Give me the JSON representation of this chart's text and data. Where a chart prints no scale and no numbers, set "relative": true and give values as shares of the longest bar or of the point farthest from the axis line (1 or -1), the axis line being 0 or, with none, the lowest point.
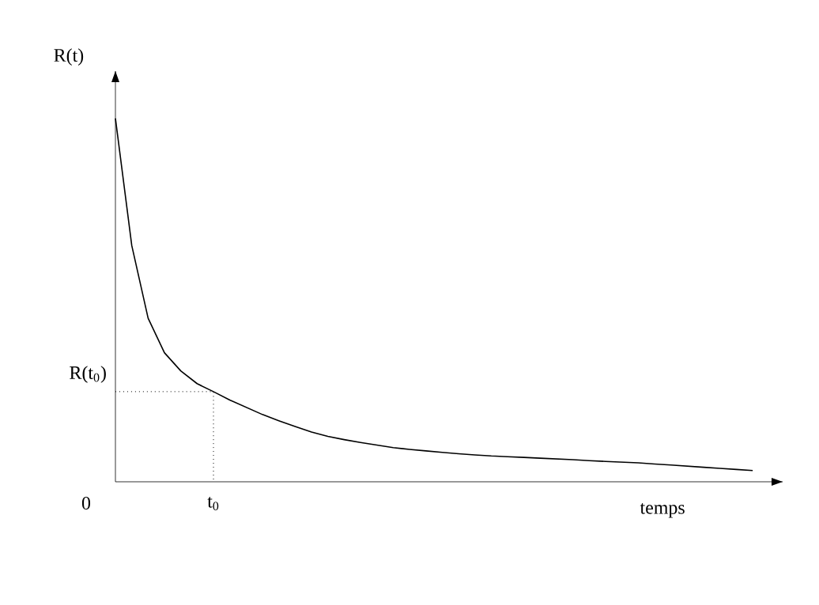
{
  "chart_data": {
    "type": "line",
    "relative": true,
    "xlabel": "temps",
    "ylabel": "R(t)",
    "color": "#000000",
    "categories": [
      null,
      null,
      null,
      null,
      null,
      null,
      null,
      null,
      null,
      null,
      null,
      null,
      null,
      null,
      null,
      null,
      null,
      null,
      null,
      null,
      null,
      null,
      null,
      null,
      null,
      null,
      null,
      null,
      null,
      null,
      null,
      null,
      null,
      null,
      null,
      null,
      null,
      null,
      null,
      null
    ],
    "values": [
      1.0,
      0.65,
      0.45,
      0.355,
      0.305,
      0.27,
      0.248,
      0.225,
      0.205,
      0.185,
      0.168,
      0.152,
      0.137,
      0.125,
      0.116,
      0.108,
      0.101,
      0.094,
      0.089,
      0.085,
      0.081,
      0.077,
      0.074,
      0.071,
      0.069,
      0.067,
      0.065,
      0.063,
      0.061,
      0.058,
      0.056,
      0.054,
      0.052,
      0.049,
      0.046,
      0.043,
      0.04,
      0.037,
      0.034,
      0.031
    ],
    "annotations": [
      "0",
      "t$_{0}$"
    ],
    "ref_lines": [
      {
        "axis": "y",
        "value": 0.248,
        "label": "R(t$_{0}$)",
        "line_style": "dotted",
        "color": "#000000"
      }
    ]
  }
}
